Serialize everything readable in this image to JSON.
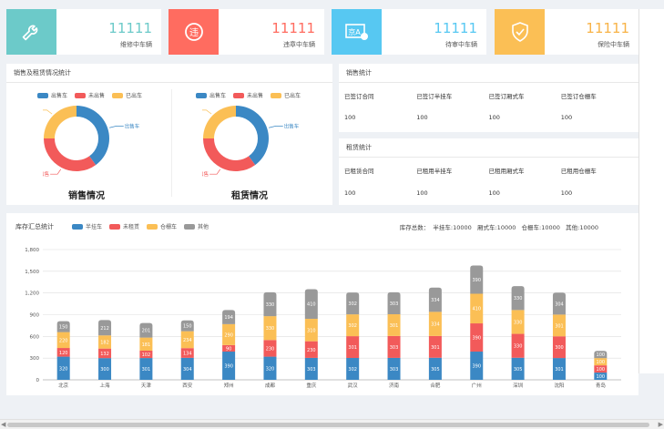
{
  "stats": [
    {
      "icon": "wrench-icon",
      "color": "#6ccac9",
      "value": "11111",
      "label": "维修中车辆",
      "valueColor": "#6ccac9"
    },
    {
      "icon": "violation-icon",
      "color": "#ff6c60",
      "value": "11111",
      "label": "违章中车辆",
      "valueColor": "#ff6c60"
    },
    {
      "icon": "license-plate-icon",
      "color": "#57c8f2",
      "value": "11111",
      "label": "待审中车辆",
      "valueColor": "#57c8f2"
    },
    {
      "icon": "shield-check-icon",
      "color": "#f8d347",
      "value": "11111",
      "label": "保险中车辆",
      "valueColor": "#f8d347"
    }
  ],
  "donut_panel": {
    "title": "销售及租赁情况统计",
    "legend": [
      {
        "name": "出售车",
        "color": "#3b88c4"
      },
      {
        "name": "未出售",
        "color": "#f25a5a"
      },
      {
        "name": "已出车",
        "color": "#fbbf55"
      }
    ],
    "sales": {
      "caption": "销售情况",
      "slices": [
        {
          "label": "出售车",
          "value": 40,
          "color": "#3b88c4"
        },
        {
          "label": "未出售",
          "value": 35,
          "color": "#f25a5a"
        },
        {
          "label": "已出车",
          "value": 25,
          "color": "#fbbf55"
        }
      ]
    },
    "lease": {
      "caption": "租赁情况",
      "slices": [
        {
          "label": "出售车",
          "value": 40,
          "color": "#3b88c4"
        },
        {
          "label": "未出售",
          "value": 35,
          "color": "#f25a5a"
        },
        {
          "label": "已出车",
          "value": 25,
          "color": "#fbbf55"
        }
      ]
    }
  },
  "table1": {
    "title": "销售统计",
    "headers": [
      "已签订合同",
      "已签订半挂车",
      "已签订厢式车",
      "已签订仓栅车"
    ],
    "values": [
      "100",
      "100",
      "100",
      "100"
    ]
  },
  "table2": {
    "title": "租赁统计",
    "headers": [
      "已租赁合同",
      "已租用半挂车",
      "已租用厢式车",
      "已租用仓栅车"
    ],
    "values": [
      "100",
      "100",
      "100",
      "100"
    ]
  },
  "bar_panel": {
    "title": "库存汇总统计",
    "totals": "库存总数：  半挂车:10000   厢式车:10000   仓栅车:10000   其他:10000",
    "chart_data": {
      "type": "bar",
      "stacked": true,
      "categories": [
        "北京",
        "上海",
        "天津",
        "西安",
        "郑州",
        "成都",
        "重庆",
        "武汉",
        "济南",
        "合肥",
        "广州",
        "深圳",
        "沈阳",
        "青岛"
      ],
      "series": [
        {
          "name": "半挂车",
          "color": "#3b88c4",
          "values": [
            320,
            300,
            301,
            304,
            390,
            320,
            303,
            302,
            303,
            305,
            390,
            305,
            301,
            100
          ]
        },
        {
          "name": "未租赁",
          "color": "#f25a5a",
          "values": [
            120,
            132,
            102,
            134,
            90,
            230,
            230,
            301,
            303,
            301,
            390,
            330,
            300,
            100
          ]
        },
        {
          "name": "仓栅车",
          "color": "#fbbf55",
          "values": [
            220,
            182,
            181,
            234,
            290,
            330,
            310,
            302,
            301,
            334,
            410,
            330,
            301,
            100
          ]
        },
        {
          "name": "其他",
          "color": "#999999",
          "values": [
            150,
            212,
            201,
            150,
            194,
            330,
            410,
            302,
            303,
            334,
            390,
            330,
            304,
            100
          ]
        }
      ],
      "ylim": [
        0,
        1800
      ],
      "yticks": [
        "0",
        "300",
        "600",
        "900",
        "1,200",
        "1,500",
        "1,800"
      ],
      "grid": true
    }
  }
}
